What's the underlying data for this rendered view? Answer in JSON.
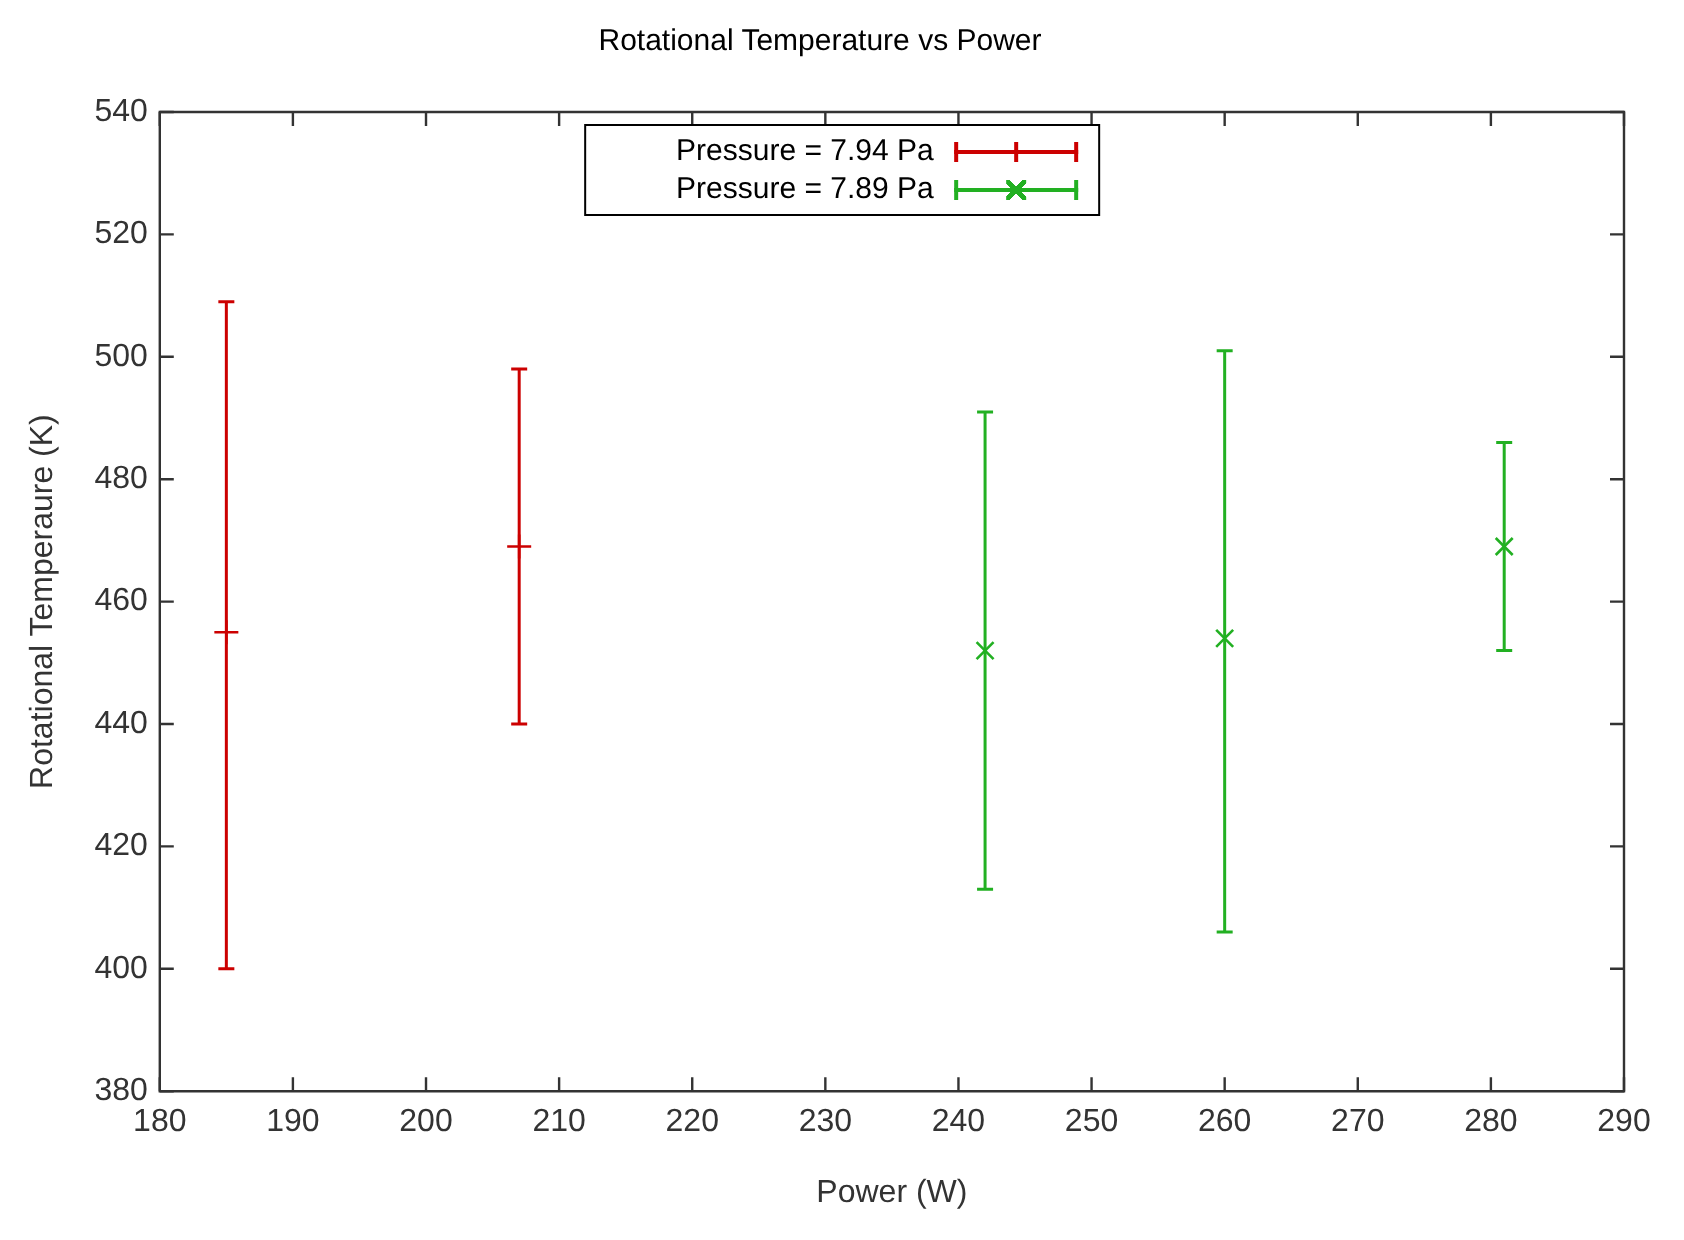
{
  "chart_data": {
    "type": "scatter",
    "title": "Rotational Temperature vs Power",
    "xlabel": "Power (W)",
    "ylabel": "Rotational Temperaure (K)",
    "xlim": [
      180,
      290
    ],
    "xticks": [
      180,
      190,
      200,
      210,
      220,
      230,
      240,
      250,
      260,
      270,
      280,
      290
    ],
    "ylim": [
      380,
      540
    ],
    "yticks": [
      380,
      400,
      420,
      440,
      460,
      480,
      500,
      520,
      540
    ],
    "grid": false,
    "legend": "top",
    "line_style": "solid",
    "series": [
      {
        "name": "Pressure = 7.94 Pa",
        "color": "#cc0000",
        "marker": "plus",
        "x": [
          185,
          207
        ],
        "values": [
          455,
          469
        ],
        "errors": [
          [
            400,
            509
          ],
          [
            440,
            498
          ]
        ]
      },
      {
        "name": "Pressure = 7.89 Pa",
        "color": "#22b022",
        "marker": "cross",
        "x": [
          242,
          260,
          281
        ],
        "values": [
          452,
          454,
          469
        ],
        "errors": [
          [
            413,
            491
          ],
          [
            406,
            501
          ],
          [
            452,
            486
          ]
        ]
      }
    ]
  }
}
